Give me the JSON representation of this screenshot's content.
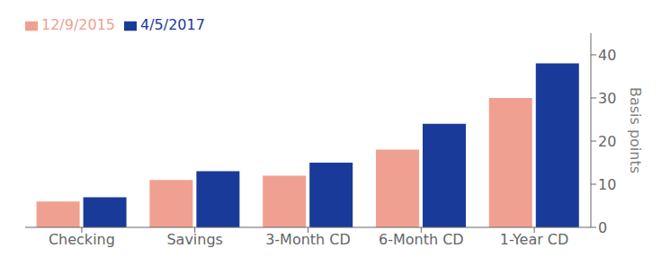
{
  "chart_data": {
    "type": "bar",
    "categories": [
      "Checking",
      "Savings",
      "3-Month CD",
      "6-Month CD",
      "1-Year CD"
    ],
    "series": [
      {
        "name": "12/9/2015",
        "color": "#f0a090",
        "values": [
          6,
          11,
          12,
          18,
          30
        ]
      },
      {
        "name": "4/5/2017",
        "color": "#1a3a9a",
        "values": [
          7,
          13,
          15,
          24,
          38
        ]
      }
    ],
    "ylabel": "Basis points",
    "ylim": [
      0,
      45
    ],
    "yticks": [
      0,
      10,
      20,
      30,
      40
    ],
    "grid": false,
    "legend": "upper left"
  }
}
